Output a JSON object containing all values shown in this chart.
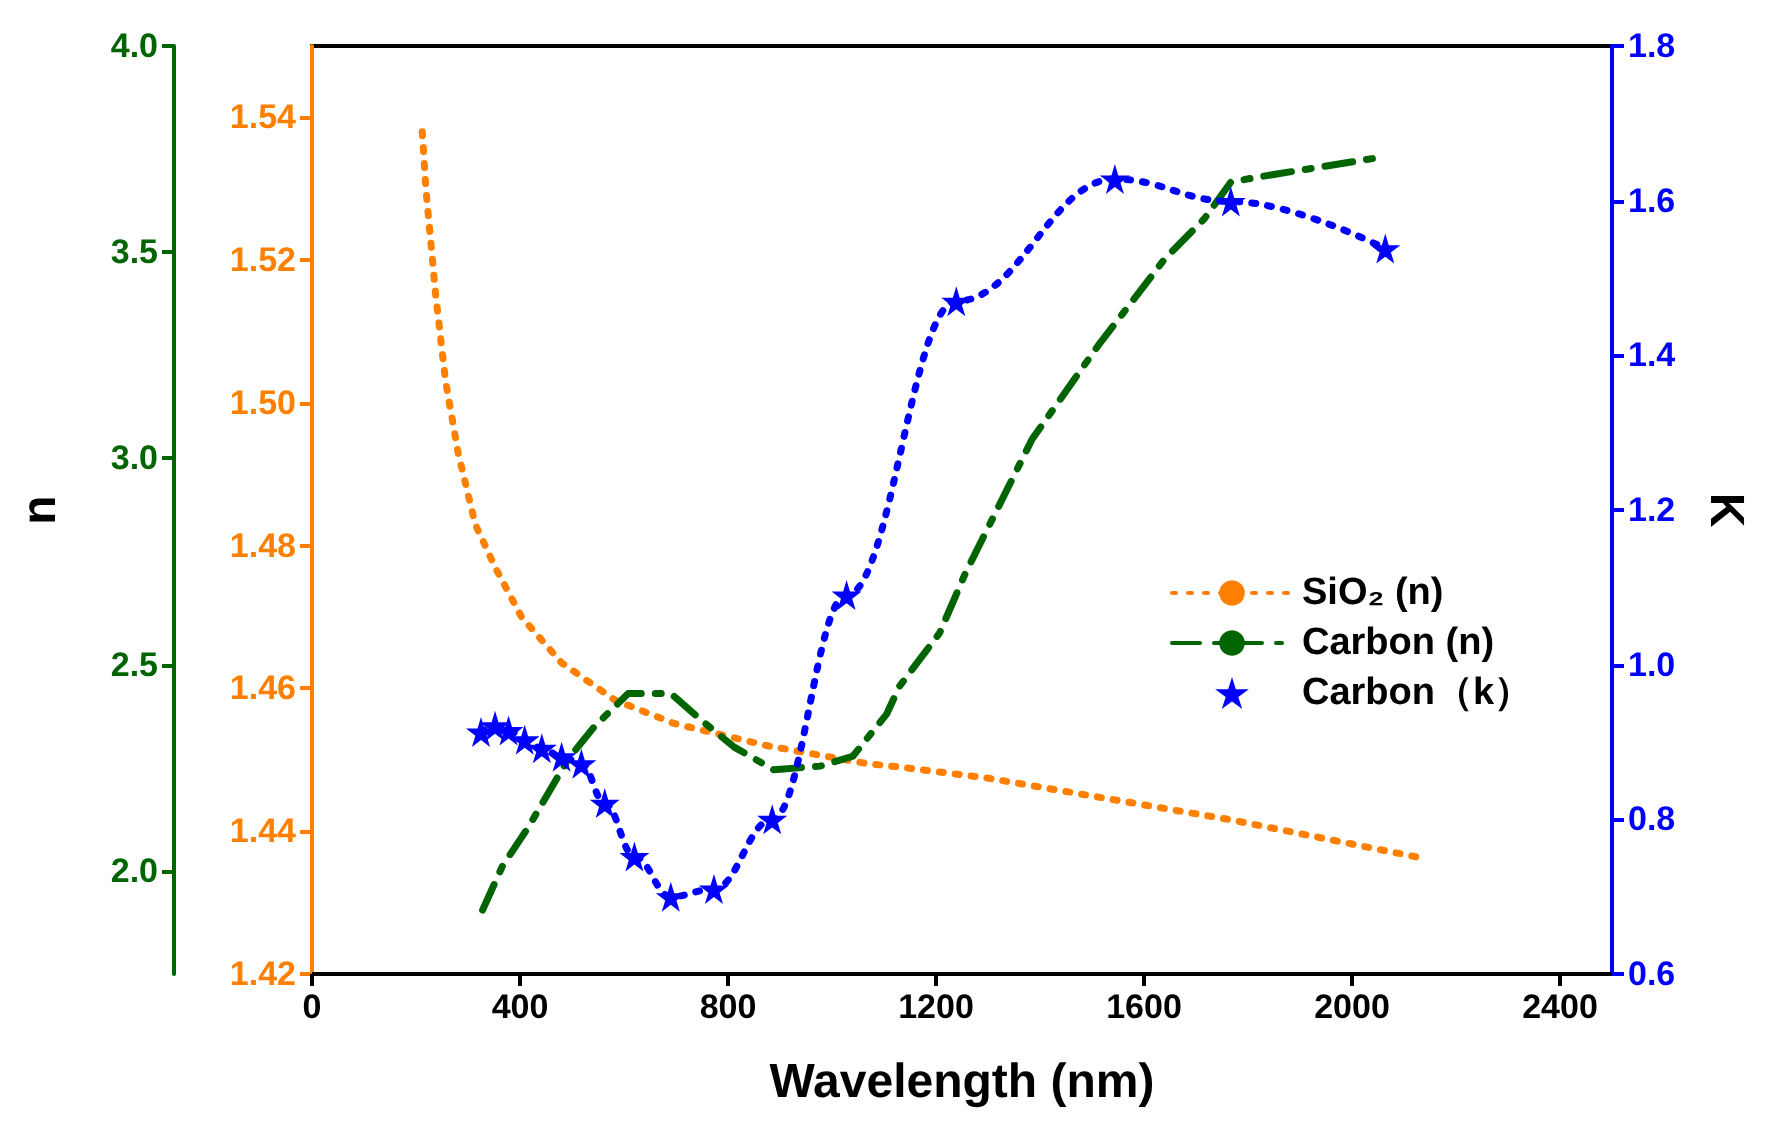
{
  "chart_data": {
    "type": "line",
    "xlabel": "Wavelength (nm)",
    "ylabel": "n",
    "y2label": "K",
    "xlim": [
      0,
      2500
    ],
    "xticks": [
      0,
      400,
      800,
      1200,
      1600,
      2000,
      2400
    ],
    "ylim": [
      1.42,
      1.55
    ],
    "yticks": [
      {
        "value": 1.42,
        "label": "1.42"
      },
      {
        "value": 1.44,
        "label": "1.44"
      },
      {
        "value": 1.46,
        "label": "1.46"
      },
      {
        "value": 1.48,
        "label": "1.48"
      },
      {
        "value": 1.5,
        "label": "1.50"
      },
      {
        "value": 1.52,
        "label": "1.52"
      },
      {
        "value": 1.54,
        "label": "1.54"
      }
    ],
    "y2lim": [
      0.6,
      1.8
    ],
    "y2ticks": [
      {
        "value": 0.6,
        "label": "0.6"
      },
      {
        "value": 0.8,
        "label": "0.8"
      },
      {
        "value": 1.0,
        "label": "1.0"
      },
      {
        "value": 1.2,
        "label": "1.2"
      },
      {
        "value": 1.4,
        "label": "1.4"
      },
      {
        "value": 1.6,
        "label": "1.6"
      },
      {
        "value": 1.8,
        "label": "1.8"
      }
    ],
    "y3lim": [
      1.75,
      4.0
    ],
    "y3ticks": [
      {
        "value": 2.0,
        "label": "2.0"
      },
      {
        "value": 2.5,
        "label": "2.5"
      },
      {
        "value": 3.0,
        "label": "3.0"
      },
      {
        "value": 3.5,
        "label": "3.5"
      },
      {
        "value": 4.0,
        "label": "4.0"
      }
    ],
    "grid": false,
    "legend": "right",
    "series": [
      {
        "name": "SiO₂ (n)",
        "color": "#ff8000",
        "axis": "y",
        "marker": "none",
        "line_style": "dotted",
        "x": [
          212,
          219,
          238,
          257,
          281,
          314,
          352,
          403,
          480,
          582,
          696,
          874,
          1065,
          1130,
          1295,
          1767,
          2131
        ],
        "values": [
          1.538,
          1.53,
          1.515,
          1.503,
          1.493,
          1.483,
          1.477,
          1.47,
          1.4636,
          1.4584,
          1.4551,
          1.452,
          1.4495,
          1.449,
          1.4475,
          1.4416,
          1.4363
        ]
      },
      {
        "name": "Carbon (n)",
        "color": "#006400",
        "axis": "y3",
        "marker": "none",
        "line_style": "dashed",
        "x": [
          328,
          366,
          417,
          492,
          543,
          608,
          690,
          747,
          812,
          888,
          977,
          1040,
          1105,
          1130,
          1207,
          1257,
          1385,
          1512,
          1640,
          1716,
          1767,
          1818,
          2054
        ],
        "values": [
          1.905,
          2.011,
          2.108,
          2.27,
          2.35,
          2.43,
          2.43,
          2.367,
          2.3,
          2.245,
          2.254,
          2.278,
          2.38,
          2.448,
          2.577,
          2.723,
          3.047,
          3.274,
          3.484,
          3.581,
          3.67,
          3.682,
          3.73
        ]
      },
      {
        "name": "Carbon（k）",
        "color": "#0000ff",
        "axis": "y2",
        "marker": "star",
        "line_style": "dotted",
        "x": [
          325,
          352,
          378,
          409,
          442,
          480,
          518,
          563,
          620,
          690,
          773,
          885,
          1028,
          1239,
          1544,
          1767,
          2064
        ],
        "values": [
          0.913,
          0.921,
          0.915,
          0.903,
          0.892,
          0.881,
          0.872,
          0.821,
          0.752,
          0.7,
          0.71,
          0.8,
          1.09,
          1.47,
          1.628,
          1.599,
          1.538
        ]
      }
    ]
  }
}
